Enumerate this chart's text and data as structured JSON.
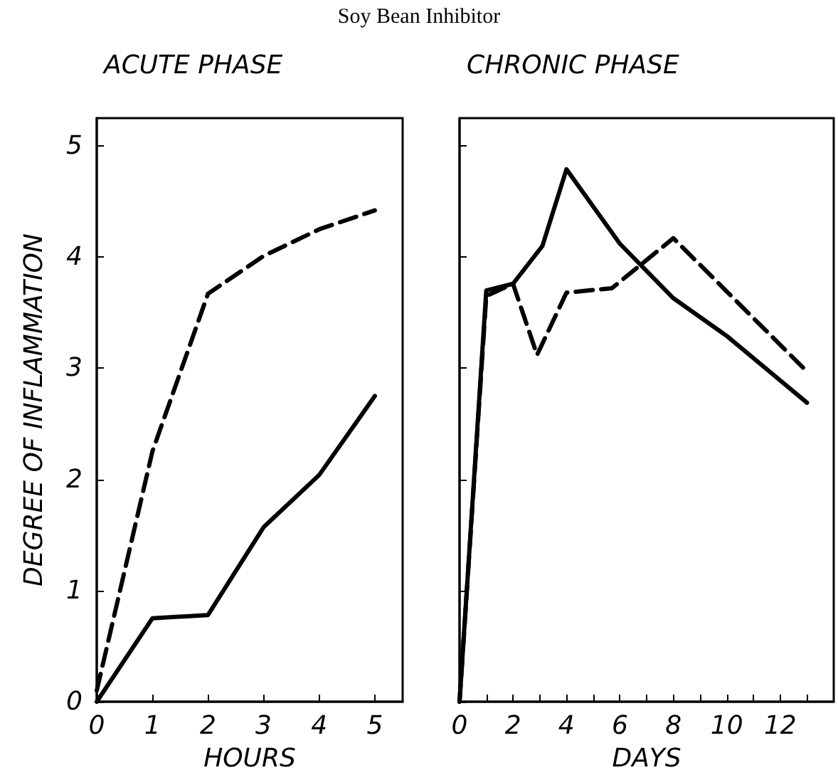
{
  "chart_data": [
    {
      "type": "line",
      "title": "ACUTE PHASE",
      "annotations": [
        "Soy Bean Inhibitor"
      ],
      "xlabel": "HOURS",
      "ylabel": "DEGREE OF INFLAMMATION",
      "x": [
        0,
        1,
        2,
        3,
        4,
        5
      ],
      "xlim": [
        0,
        5.5
      ],
      "xticks": [
        0,
        1,
        2,
        3,
        4,
        5
      ],
      "ylim": [
        0,
        5.25
      ],
      "yticks": [
        0,
        1,
        2,
        3,
        4,
        5
      ],
      "series": [
        {
          "color": "#000000",
          "line_style": "solid",
          "values": [
            0,
            0.75,
            0.78,
            1.57,
            2.04,
            2.75
          ]
        },
        {
          "color": "#000000",
          "line_style": "dashed",
          "values": [
            0.1,
            2.25,
            3.67,
            4.01,
            4.25,
            4.42
          ]
        }
      ]
    },
    {
      "type": "line",
      "title": "CHRONIC PHASE",
      "xlabel": "DAYS",
      "xlim": [
        0,
        14
      ],
      "xticks": [
        0,
        {
          "value": 1,
          "label": null
        },
        2,
        {
          "value": 3,
          "label": null
        },
        4,
        {
          "value": 5,
          "label": null
        },
        6,
        {
          "value": 7,
          "label": null
        },
        8,
        {
          "value": 9,
          "label": null
        },
        10,
        {
          "value": 11,
          "label": null
        },
        12,
        {
          "value": 13,
          "label": null
        }
      ],
      "ylim": [
        0,
        5.25
      ],
      "yticks": [
        0,
        1,
        2,
        3,
        4,
        5
      ],
      "tick_labels": "x",
      "series": [
        {
          "color": "#000000",
          "line_style": "solid",
          "x": [
            0,
            1,
            2,
            3.1,
            4,
            6,
            8,
            10,
            13
          ],
          "values": [
            0,
            3.7,
            3.76,
            4.1,
            4.79,
            4.12,
            3.63,
            3.29,
            2.69
          ]
        },
        {
          "color": "#000000",
          "line_style": "dashed",
          "x": [
            0,
            1,
            2,
            2.9,
            4,
            5.7,
            8,
            13
          ],
          "values": [
            0,
            3.65,
            3.76,
            3.12,
            3.68,
            3.72,
            4.17,
            2.97
          ]
        }
      ]
    }
  ]
}
